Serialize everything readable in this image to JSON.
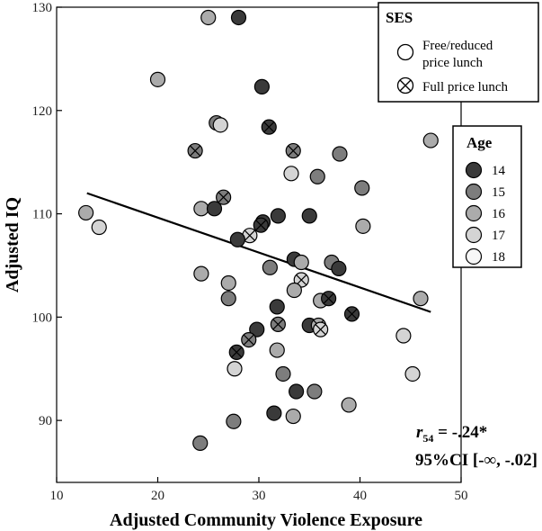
{
  "chart_data": {
    "type": "scatter",
    "title": "",
    "xlabel": "Adjusted Community Violence Exposure",
    "ylabel": "Adjusted IQ",
    "xlim": [
      10,
      50
    ],
    "ylim": [
      84,
      130
    ],
    "xticks": [
      10,
      20,
      30,
      40,
      50
    ],
    "yticks": [
      90,
      100,
      110,
      120,
      130
    ],
    "grid": false,
    "legends": {
      "ses": {
        "title": "SES",
        "placement": "top-right",
        "entries": [
          {
            "key": "free",
            "label_lines": [
              "Free/reduced",
              "price lunch"
            ]
          },
          {
            "key": "full",
            "label_lines": [
              "Full price lunch"
            ]
          }
        ]
      },
      "age": {
        "title": "Age",
        "placement": "right",
        "entries": [
          {
            "label": "14",
            "color": "#3a3a3a"
          },
          {
            "label": "15",
            "color": "#7d7d7d"
          },
          {
            "label": "16",
            "color": "#ababab"
          },
          {
            "label": "17",
            "color": "#d4d4d4"
          },
          {
            "label": "18",
            "color": "#f7f7f7"
          }
        ]
      }
    },
    "regression_line": {
      "x": [
        13,
        47
      ],
      "y": [
        112,
        100.5
      ]
    },
    "annotation": {
      "r_symbol": "r",
      "r_subscript": "54",
      "r_value": " = -.24*",
      "ci": "95%CI [-∞, -.02]"
    },
    "points": [
      {
        "x": 28.0,
        "y": 129.0,
        "age": 14,
        "ses": "free"
      },
      {
        "x": 25.0,
        "y": 129.0,
        "age": 16,
        "ses": "free"
      },
      {
        "x": 20.0,
        "y": 123.0,
        "age": 16,
        "ses": "free"
      },
      {
        "x": 30.3,
        "y": 122.3,
        "age": 14,
        "ses": "free"
      },
      {
        "x": 25.8,
        "y": 118.8,
        "age": 15,
        "ses": "free"
      },
      {
        "x": 26.2,
        "y": 118.6,
        "age": 17,
        "ses": "free"
      },
      {
        "x": 31.0,
        "y": 118.4,
        "age": 14,
        "ses": "full"
      },
      {
        "x": 47.0,
        "y": 117.1,
        "age": 16,
        "ses": "free"
      },
      {
        "x": 23.7,
        "y": 116.1,
        "age": 15,
        "ses": "full"
      },
      {
        "x": 33.4,
        "y": 116.1,
        "age": 15,
        "ses": "full"
      },
      {
        "x": 38.0,
        "y": 115.8,
        "age": 15,
        "ses": "free"
      },
      {
        "x": 33.2,
        "y": 113.9,
        "age": 17,
        "ses": "free"
      },
      {
        "x": 35.8,
        "y": 113.6,
        "age": 15,
        "ses": "free"
      },
      {
        "x": 40.2,
        "y": 112.5,
        "age": 15,
        "ses": "free"
      },
      {
        "x": 26.5,
        "y": 111.6,
        "age": 15,
        "ses": "full"
      },
      {
        "x": 24.3,
        "y": 110.5,
        "age": 16,
        "ses": "free"
      },
      {
        "x": 25.6,
        "y": 110.5,
        "age": 14,
        "ses": "free"
      },
      {
        "x": 12.9,
        "y": 110.1,
        "age": 16,
        "ses": "free"
      },
      {
        "x": 31.9,
        "y": 109.8,
        "age": 14,
        "ses": "free"
      },
      {
        "x": 35.0,
        "y": 109.8,
        "age": 14,
        "ses": "free"
      },
      {
        "x": 30.4,
        "y": 109.2,
        "age": 14,
        "ses": "free"
      },
      {
        "x": 30.2,
        "y": 108.9,
        "age": 14,
        "ses": "full"
      },
      {
        "x": 14.2,
        "y": 108.7,
        "age": 17,
        "ses": "free"
      },
      {
        "x": 40.3,
        "y": 108.8,
        "age": 16,
        "ses": "free"
      },
      {
        "x": 29.1,
        "y": 107.9,
        "age": 17,
        "ses": "full"
      },
      {
        "x": 27.9,
        "y": 107.5,
        "age": 14,
        "ses": "free"
      },
      {
        "x": 33.5,
        "y": 105.6,
        "age": 14,
        "ses": "free"
      },
      {
        "x": 34.2,
        "y": 105.3,
        "age": 16,
        "ses": "free"
      },
      {
        "x": 37.2,
        "y": 105.3,
        "age": 15,
        "ses": "free"
      },
      {
        "x": 31.1,
        "y": 104.8,
        "age": 15,
        "ses": "free"
      },
      {
        "x": 37.9,
        "y": 104.7,
        "age": 14,
        "ses": "free"
      },
      {
        "x": 24.3,
        "y": 104.2,
        "age": 16,
        "ses": "free"
      },
      {
        "x": 34.2,
        "y": 103.6,
        "age": 17,
        "ses": "full"
      },
      {
        "x": 27.0,
        "y": 103.3,
        "age": 16,
        "ses": "free"
      },
      {
        "x": 33.5,
        "y": 102.6,
        "age": 16,
        "ses": "free"
      },
      {
        "x": 27.0,
        "y": 101.8,
        "age": 15,
        "ses": "free"
      },
      {
        "x": 36.1,
        "y": 101.6,
        "age": 16,
        "ses": "free"
      },
      {
        "x": 36.9,
        "y": 101.8,
        "age": 14,
        "ses": "full"
      },
      {
        "x": 46.0,
        "y": 101.8,
        "age": 16,
        "ses": "free"
      },
      {
        "x": 31.8,
        "y": 101.0,
        "age": 14,
        "ses": "free"
      },
      {
        "x": 39.2,
        "y": 100.3,
        "age": 14,
        "ses": "full"
      },
      {
        "x": 31.9,
        "y": 99.3,
        "age": 15,
        "ses": "full"
      },
      {
        "x": 35.0,
        "y": 99.2,
        "age": 14,
        "ses": "free"
      },
      {
        "x": 35.9,
        "y": 99.2,
        "age": 16,
        "ses": "full"
      },
      {
        "x": 36.1,
        "y": 98.8,
        "age": 17,
        "ses": "full"
      },
      {
        "x": 29.8,
        "y": 98.8,
        "age": 14,
        "ses": "free"
      },
      {
        "x": 29.0,
        "y": 97.8,
        "age": 15,
        "ses": "full"
      },
      {
        "x": 44.3,
        "y": 98.2,
        "age": 17,
        "ses": "free"
      },
      {
        "x": 31.8,
        "y": 96.8,
        "age": 16,
        "ses": "free"
      },
      {
        "x": 27.8,
        "y": 96.6,
        "age": 14,
        "ses": "full"
      },
      {
        "x": 27.6,
        "y": 95.0,
        "age": 17,
        "ses": "free"
      },
      {
        "x": 45.2,
        "y": 94.5,
        "age": 17,
        "ses": "free"
      },
      {
        "x": 32.4,
        "y": 94.5,
        "age": 15,
        "ses": "free"
      },
      {
        "x": 33.7,
        "y": 92.8,
        "age": 14,
        "ses": "free"
      },
      {
        "x": 35.5,
        "y": 92.8,
        "age": 15,
        "ses": "free"
      },
      {
        "x": 38.9,
        "y": 91.5,
        "age": 16,
        "ses": "free"
      },
      {
        "x": 31.5,
        "y": 90.7,
        "age": 14,
        "ses": "free"
      },
      {
        "x": 33.4,
        "y": 90.4,
        "age": 16,
        "ses": "free"
      },
      {
        "x": 27.5,
        "y": 89.9,
        "age": 15,
        "ses": "free"
      },
      {
        "x": 24.2,
        "y": 87.8,
        "age": 15,
        "ses": "free"
      }
    ]
  }
}
